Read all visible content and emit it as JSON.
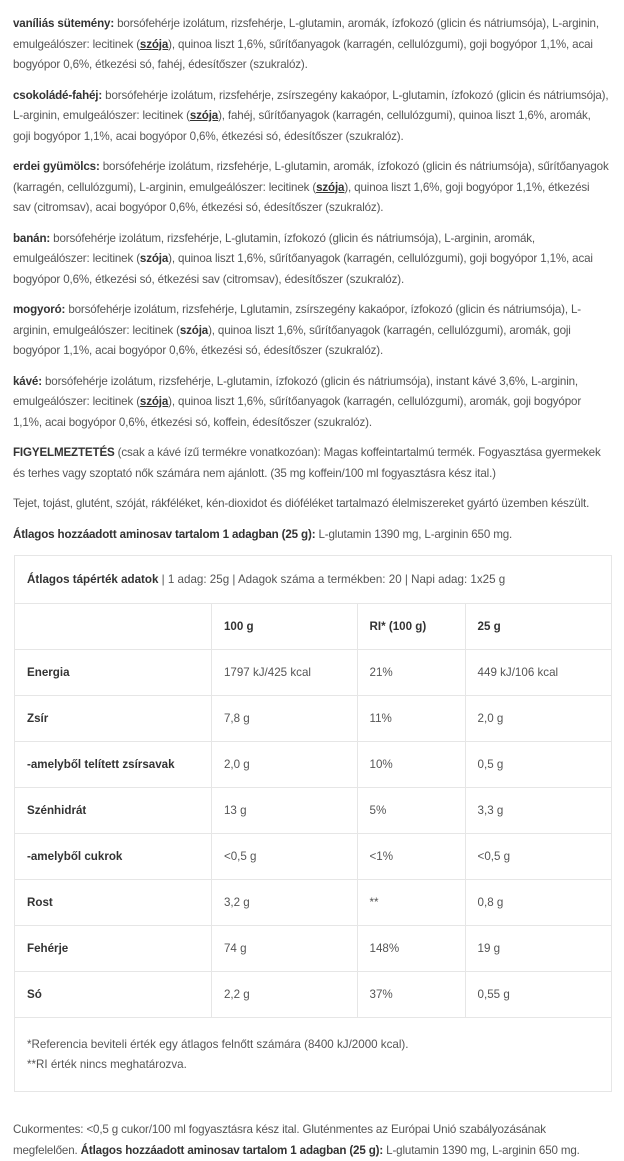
{
  "ingredients": [
    [
      {
        "t": "vaníliás sütemény:",
        "b": 1
      },
      {
        "t": " borsófehérje izolátum, rizsfehérje, L-glutamin, aromák, ízfokozó (glicin és nátriumsója), L-arginin, emulgeálószer: lecitinek ("
      },
      {
        "t": "szója",
        "u": 1
      },
      {
        "t": "), quinoa liszt 1,6%, sűrítőanyagok (karragén, cellulózgumi), goji bogyópor 1,1%, acai bogyópor 0,6%, étkezési só, fahéj, édesítőszer (szukralóz)."
      }
    ],
    [
      {
        "t": "csokoládé-fahéj:",
        "b": 1
      },
      {
        "t": " borsófehérje izolátum, rizsfehérje, zsírszegény kakaópor, L-glutamin, ízfokozó (glicin és nátriumsója), L-arginin, emulgeálószer: lecitinek ("
      },
      {
        "t": "szója",
        "u": 1
      },
      {
        "t": "), fahéj, sűrítőanyagok (karragén, cellulózgumi), quinoa liszt 1,6%, aromák, goji bogyópor 1,1%, acai bogyópor 0,6%, étkezési só, édesítőszer (szukralóz)."
      }
    ],
    [
      {
        "t": "erdei gyümölcs:",
        "b": 1
      },
      {
        "t": " borsófehérje izolátum, rizsfehérje, L-glutamin, aromák, ízfokozó (glicin és nátriumsója), sűrítőanyagok (karragén, cellulózgumi), L-arginin, emulgeálószer: lecitinek ("
      },
      {
        "t": "szója",
        "u": 1
      },
      {
        "t": "), quinoa liszt 1,6%, goji bogyópor 1,1%, étkezési sav (citromsav), acai bogyópor 0,6%, étkezési só, édesítőszer (szukralóz)."
      }
    ],
    [
      {
        "t": "banán:",
        "b": 1
      },
      {
        "t": " borsófehérje izolátum, rizsfehérje, L-glutamin, ízfokozó (glicin és nátriumsója), L-arginin, aromák, emulgeálószer: lecitinek ("
      },
      {
        "t": "szója",
        "b": 1
      },
      {
        "t": "), quinoa liszt 1,6%, sűrítőanyagok (karragén, cellulózgumi), goji bogyópor 1,1%, acai bogyópor 0,6%, étkezési só, étkezési sav (citromsav), édesítőszer (szukralóz)."
      }
    ],
    [
      {
        "t": "mogyoró:",
        "b": 1
      },
      {
        "t": " borsófehérje izolátum, rizsfehérje, Lglutamin, zsírszegény kakaópor, ízfokozó (glicin és nátriumsója), L-arginin, emulgeálószer: lecitinek ("
      },
      {
        "t": "szója",
        "b": 1
      },
      {
        "t": "), quinoa liszt 1,6%, sűrítőanyagok (karragén, cellulózgumi), aromák, goji bogyópor 1,1%, acai bogyópor 0,6%, étkezési só, édesítőszer (szukralóz)."
      }
    ],
    [
      {
        "t": "kávé:",
        "b": 1
      },
      {
        "t": " borsófehérje izolátum, rizsfehérje, L-glutamin, ízfokozó (glicin és nátriumsója), instant kávé 3,6%, L-arginin, emulgeálószer: lecitinek ("
      },
      {
        "t": "szója",
        "u": 1
      },
      {
        "t": "), quinoa liszt 1,6%, sűrítőanyagok (karragén, cellulózgumi), aromák, goji bogyópor 1,1%, acai bogyópor 0,6%, étkezési só, koffein, édesítőszer (szukralóz)."
      }
    ],
    [
      {
        "t": "FIGYELMEZTETÉS",
        "b": 1
      },
      {
        "t": " (csak a kávé ízű termékre vonatkozóan): Magas koffeintartalmú termék. Fogyasztása gyermekek és terhes vagy szoptató nők számára nem ajánlott. (35 mg koffein/100 ml fogyasztásra kész ital.)"
      }
    ],
    [
      {
        "t": "Tejet, tojást, glutént, szóját, rákféléket, kén-dioxidot és dióféléket tartalmazó élelmiszereket gyártó üzemben készült."
      }
    ],
    [
      {
        "t": "Átlagos hozzáadott aminosav tartalom 1 adagban (25 g):",
        "b": 1
      },
      {
        "t": " L-glutamin 1390 mg, L-arginin 650 mg."
      }
    ]
  ],
  "table": {
    "title": "Átlagos tápérték adatok",
    "subtitle": " | 1 adag: 25g | Adagok száma a termékben: 20 | Napi adag: 1x25 g",
    "columns": [
      "",
      "100 g",
      "RI* (100 g)",
      "25 g"
    ],
    "rows": [
      [
        "Energia",
        "1797 kJ/425 kcal",
        "21%",
        "449 kJ/106 kcal"
      ],
      [
        "Zsír",
        "7,8 g",
        "11%",
        "2,0 g"
      ],
      [
        "-amelyből telített zsírsavak",
        "2,0 g",
        "10%",
        "0,5 g"
      ],
      [
        "Szénhidrát",
        "13 g",
        "5%",
        "3,3 g"
      ],
      [
        "-amelyből cukrok",
        "<0,5 g",
        "<1%",
        "<0,5 g"
      ],
      [
        "Rost",
        "3,2 g",
        "**",
        "0,8 g"
      ],
      [
        "Fehérje",
        "74 g",
        "148%",
        "19 g"
      ],
      [
        "Só",
        "2,2 g",
        "37%",
        "0,55 g"
      ]
    ],
    "notes": [
      "*Referencia beviteli érték egy átlagos felnőtt számára (8400 kJ/2000 kcal).",
      "**RI érték nincs meghatározva."
    ]
  },
  "footer": [
    {
      "t": "Cukormentes: <0,5 g cukor/100 ml fogyasztásra kész ital. Gluténmentes az Európai Unió szabályozásának megfelelően. "
    },
    {
      "t": "Átlagos hozzáadott aminosav tartalom 1 adagban (25 g):",
      "b": 1
    },
    {
      "t": " L-glutamin 1390 mg, L-arginin 650 mg."
    }
  ]
}
